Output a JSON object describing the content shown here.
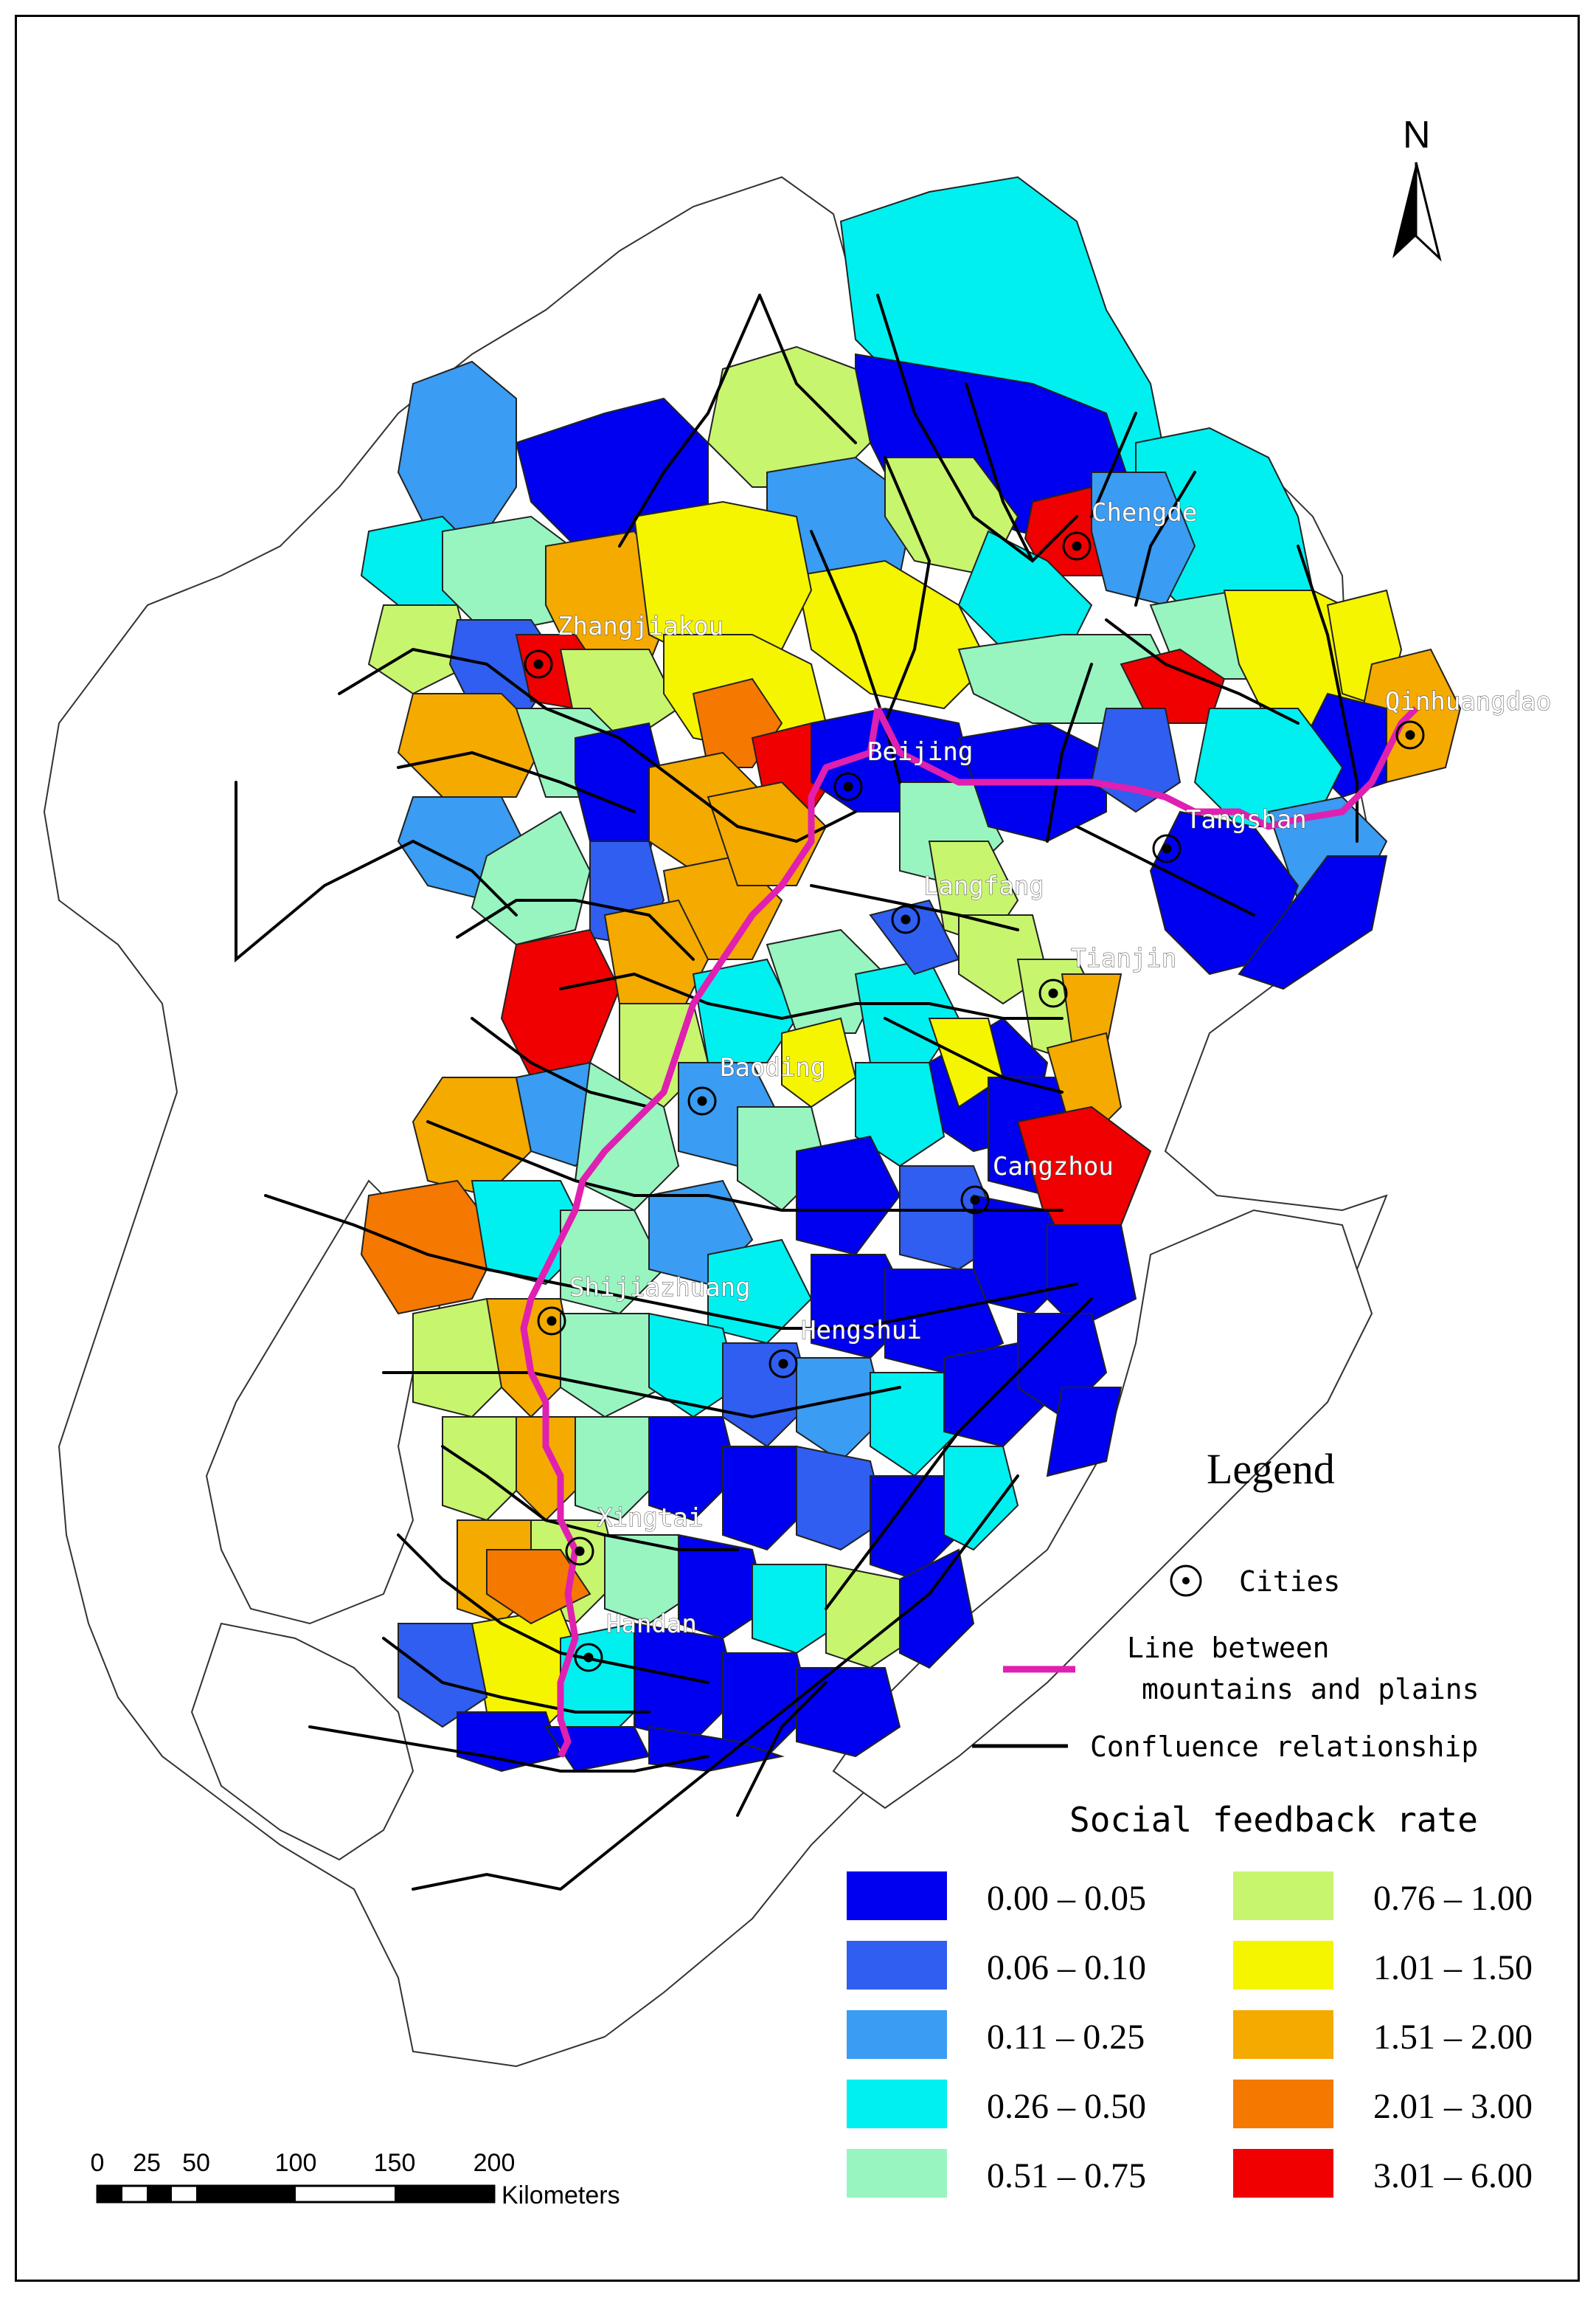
{
  "cities": [
    {
      "name": "Chengde"
    },
    {
      "name": "Zhangjiakou"
    },
    {
      "name": "Qinhuangdao"
    },
    {
      "name": "Beijing"
    },
    {
      "name": "Tangshan"
    },
    {
      "name": "Langfang"
    },
    {
      "name": "Tianjin"
    },
    {
      "name": "Baoding"
    },
    {
      "name": "Cangzhou"
    },
    {
      "name": "Shijiazhuang"
    },
    {
      "name": "Hengshui"
    },
    {
      "name": "Xingtai"
    },
    {
      "name": "Handan"
    }
  ],
  "north_arrow": {
    "label": "N"
  },
  "legend": {
    "title": "Legend",
    "cities": "Cities",
    "line_between_1": "Line between",
    "line_between_2": "mountains and plains",
    "confluence": "Confluence relationship",
    "line_color": "#e020b0",
    "rate_title": "Social feedback rate",
    "classes": [
      {
        "label": "0.00 – 0.05",
        "color": "#0000f0"
      },
      {
        "label": "0.06 – 0.10",
        "color": "#2f5ef0"
      },
      {
        "label": "0.11 – 0.25",
        "color": "#3a9cf2"
      },
      {
        "label": "0.26 – 0.50",
        "color": "#00f0f0"
      },
      {
        "label": "0.51 – 0.75",
        "color": "#98f5c0"
      },
      {
        "label": "0.76 – 1.00",
        "color": "#c8f56e"
      },
      {
        "label": "1.01 – 1.50",
        "color": "#f5f500"
      },
      {
        "label": "1.51 – 2.00",
        "color": "#f5aa00"
      },
      {
        "label": "2.01 – 3.00",
        "color": "#f57800"
      },
      {
        "label": "3.01 – 6.00",
        "color": "#f00000"
      }
    ]
  },
  "scale_bar": {
    "ticks": [
      "0",
      "25",
      "50",
      "100",
      "150",
      "200"
    ],
    "unit": "Kilometers"
  }
}
